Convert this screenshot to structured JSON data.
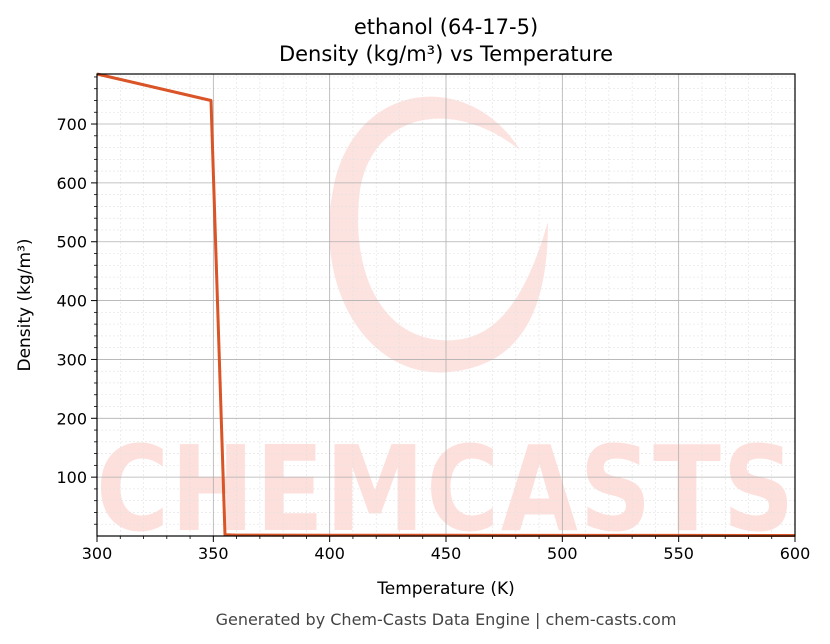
{
  "chart_data": {
    "type": "line",
    "title": "ethanol (64-17-5)",
    "subtitle": "Density (kg/m³) vs Temperature",
    "xlabel": "Temperature (K)",
    "ylabel": "Density (kg/m³)",
    "xlim": [
      300,
      600
    ],
    "ylim": [
      0,
      785
    ],
    "xticks": [
      300,
      350,
      400,
      450,
      500,
      550,
      600
    ],
    "yticks": [
      100,
      200,
      300,
      400,
      500,
      600,
      700
    ],
    "grid": true,
    "series": [
      {
        "color": "#d95427",
        "x": [
          300,
          349,
          355,
          360,
          400,
          450,
          500,
          550,
          600
        ],
        "y": [
          785,
          740,
          2,
          1.6,
          1.4,
          1.2,
          1.1,
          1.0,
          0.9
        ]
      }
    ]
  },
  "watermark": {
    "text": "CHEMCASTS",
    "color": "#fde0dc"
  },
  "footer": "Generated by Chem-Casts Data Engine | chem-casts.com"
}
